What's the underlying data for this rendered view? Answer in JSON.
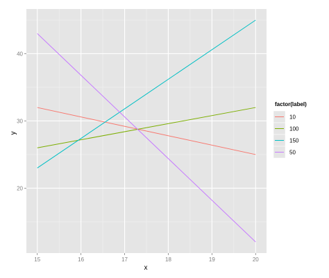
{
  "chart_data": {
    "type": "line",
    "xlabel": "x",
    "ylabel": "y",
    "xlim": [
      14.75,
      20.25
    ],
    "ylim": [
      10.35,
      46.65
    ],
    "x_ticks": [
      15,
      16,
      17,
      18,
      19,
      20
    ],
    "y_ticks": [
      20,
      30,
      40
    ],
    "grid": true,
    "legend": {
      "title": "factor(label)",
      "position": "right"
    },
    "series": [
      {
        "name": "10",
        "color": "#F8766D",
        "x": [
          15,
          20
        ],
        "y": [
          32,
          25
        ]
      },
      {
        "name": "100",
        "color": "#7CAE00",
        "x": [
          15,
          20
        ],
        "y": [
          26,
          32
        ]
      },
      {
        "name": "150",
        "color": "#00BFC4",
        "x": [
          15,
          20
        ],
        "y": [
          23,
          45
        ]
      },
      {
        "name": "50",
        "color": "#C77CFF",
        "x": [
          15,
          20
        ],
        "y": [
          43,
          12
        ]
      }
    ]
  },
  "colors": {
    "panel": "#E5E5E5",
    "grid_major": "#FFFFFF",
    "grid_minor": "#F2F2F2",
    "legend_key_bg": "#E5E5E5"
  }
}
